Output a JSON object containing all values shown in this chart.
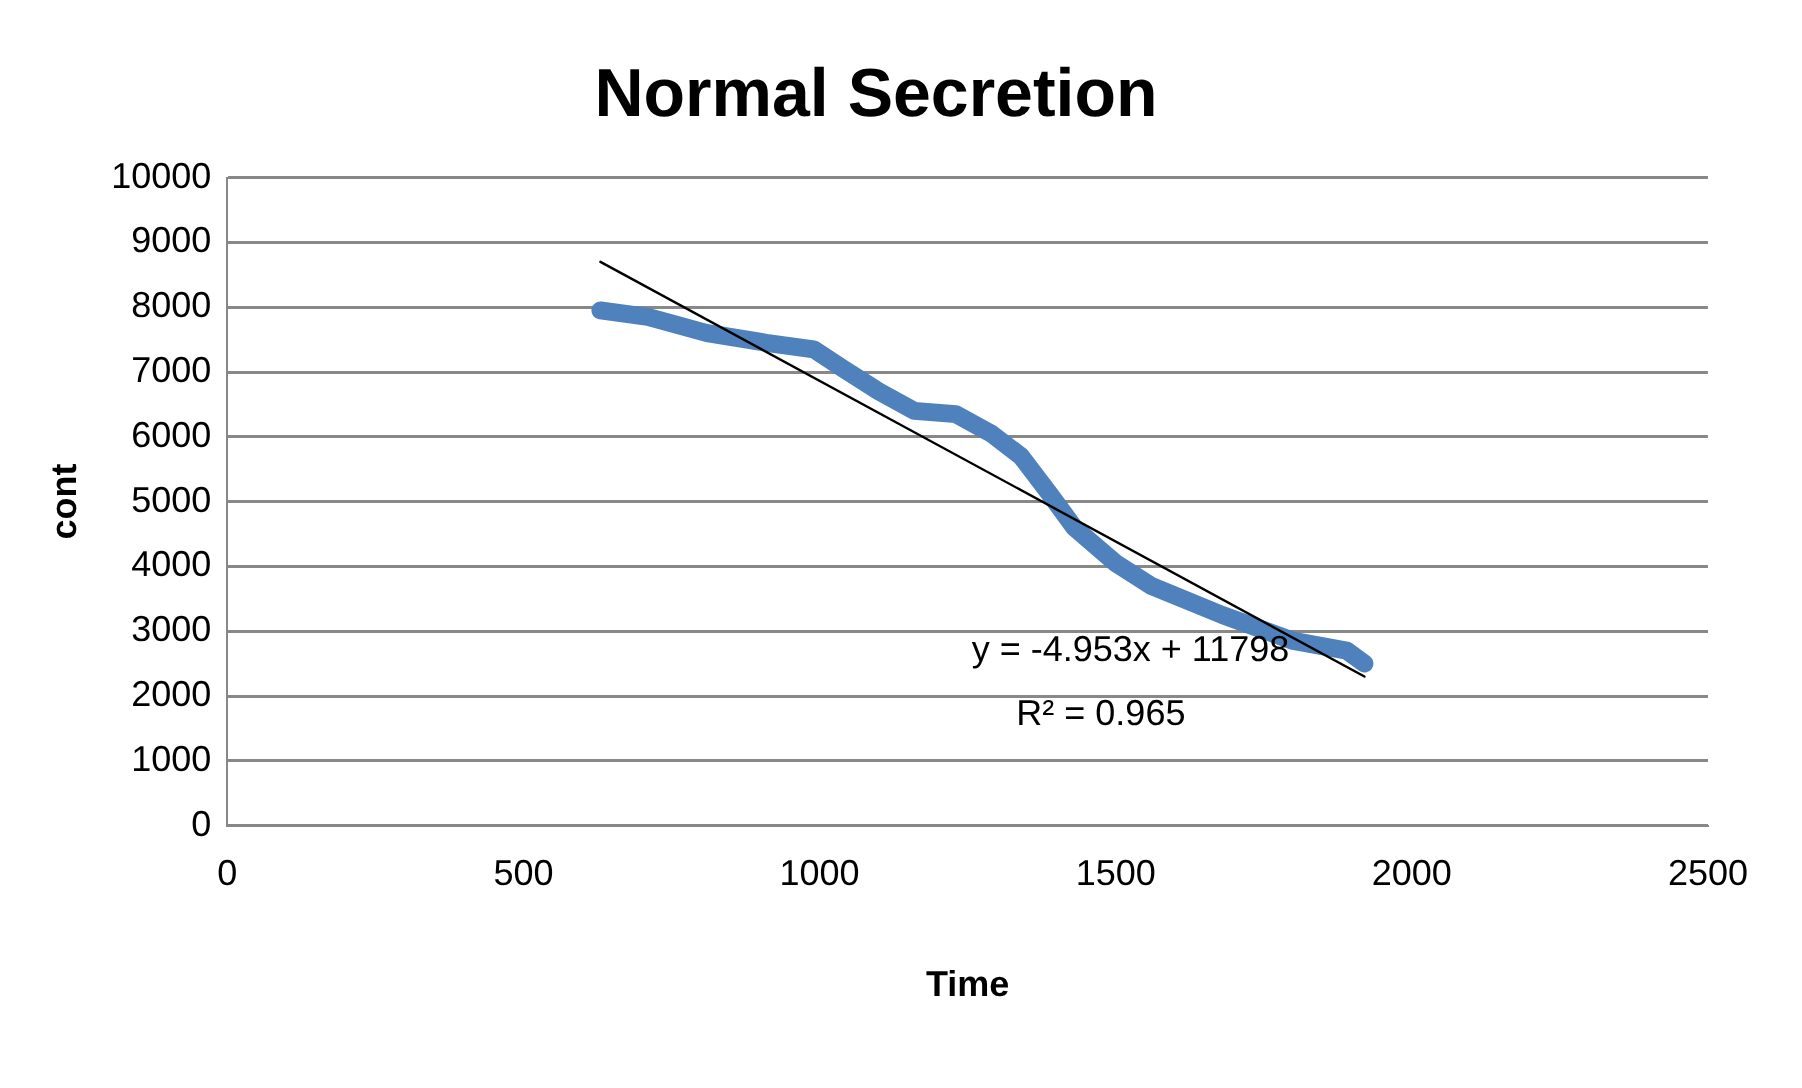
{
  "chart_data": {
    "type": "line",
    "title": "Normal Secretion",
    "xlabel": "Time",
    "ylabel": "cont",
    "xlim": [
      0,
      2500
    ],
    "xticks": [
      0,
      500,
      1000,
      1500,
      2000,
      2500
    ],
    "ylim": [
      0,
      10000
    ],
    "yticks": [
      0,
      1000,
      2000,
      3000,
      4000,
      5000,
      6000,
      7000,
      8000,
      9000,
      10000
    ],
    "grid": "y",
    "legend": false,
    "marker": "none",
    "series": [
      {
        "color": "#4f81bd",
        "x": [
          630,
          710,
          810,
          910,
          990,
          1040,
          1100,
          1160,
          1230,
          1290,
          1340,
          1390,
          1430,
          1500,
          1560,
          1680,
          1800,
          1890,
          1920
        ],
        "values": [
          7950,
          7850,
          7600,
          7450,
          7350,
          7050,
          6700,
          6400,
          6350,
          6050,
          5700,
          5100,
          4600,
          4050,
          3700,
          3250,
          2850,
          2700,
          2500
        ]
      },
      {
        "color": "#000000",
        "x": [
          630,
          1920
        ],
        "values": [
          8700,
          2300
        ]
      }
    ],
    "annotations": [
      "y = -4.953x + 11798",
      "R² = 0.965"
    ]
  }
}
